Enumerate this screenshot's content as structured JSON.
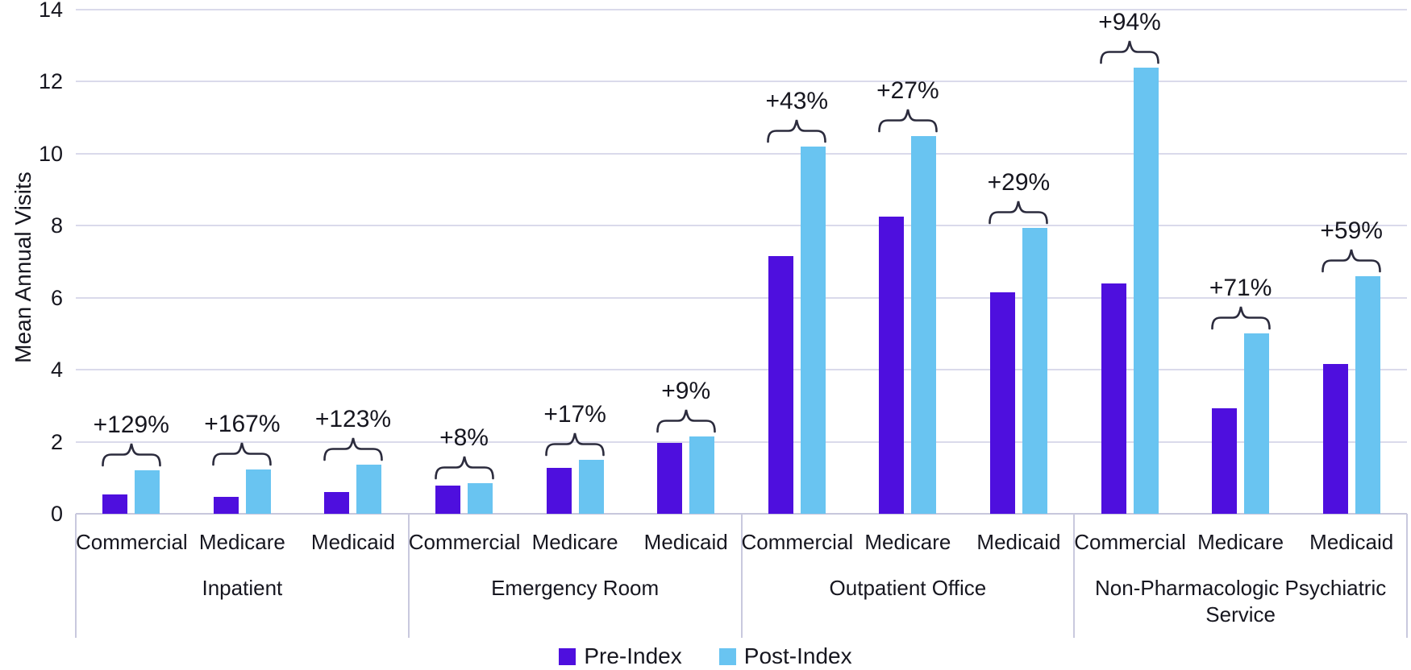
{
  "chart_data": {
    "type": "bar",
    "title": "",
    "xlabel": "",
    "ylabel": "Mean Annual Visits",
    "ylim": [
      0,
      14
    ],
    "yticks": [
      0,
      2,
      4,
      6,
      8,
      10,
      12,
      14
    ],
    "grid": true,
    "legend_position": "bottom",
    "series_names": [
      "Pre-Index",
      "Post-Index"
    ],
    "series_colors": [
      "#4E0FDE",
      "#69C4F1"
    ],
    "groups": [
      {
        "label": "Inpatient",
        "payers": [
          {
            "label": "Commercial",
            "pre": 0.53,
            "post": 1.21,
            "change": "+129%"
          },
          {
            "label": "Medicare",
            "pre": 0.46,
            "post": 1.23,
            "change": "+167%"
          },
          {
            "label": "Medicaid",
            "pre": 0.61,
            "post": 1.36,
            "change": "+123%"
          }
        ]
      },
      {
        "label": "Emergency Room",
        "payers": [
          {
            "label": "Commercial",
            "pre": 0.79,
            "post": 0.85,
            "change": "+8%"
          },
          {
            "label": "Medicare",
            "pre": 1.27,
            "post": 1.49,
            "change": "+17%"
          },
          {
            "label": "Medicaid",
            "pre": 1.97,
            "post": 2.15,
            "change": "+9%"
          }
        ]
      },
      {
        "label": "Outpatient Office",
        "payers": [
          {
            "label": "Commercial",
            "pre": 7.15,
            "post": 10.2,
            "change": "+43%"
          },
          {
            "label": "Medicare",
            "pre": 8.25,
            "post": 10.5,
            "change": "+27%"
          },
          {
            "label": "Medicaid",
            "pre": 6.15,
            "post": 7.95,
            "change": "+29%"
          }
        ]
      },
      {
        "label": "Non-Pharmacologic Psychiatric Service",
        "payers": [
          {
            "label": "Commercial",
            "pre": 6.4,
            "post": 12.4,
            "change": "+94%"
          },
          {
            "label": "Medicare",
            "pre": 2.92,
            "post": 5.0,
            "change": "+71%"
          },
          {
            "label": "Medicaid",
            "pre": 4.15,
            "post": 6.6,
            "change": "+59%"
          }
        ]
      }
    ],
    "legend": {
      "entries": [
        {
          "name": "Pre-Index",
          "color": "#4E0FDE"
        },
        {
          "name": "Post-Index",
          "color": "#69C4F1"
        }
      ]
    },
    "colors": {
      "gridline": "#dadaeb",
      "axis_line": "#c7c7dc",
      "text": "#16161f",
      "brace": "#2b2b3d"
    }
  }
}
